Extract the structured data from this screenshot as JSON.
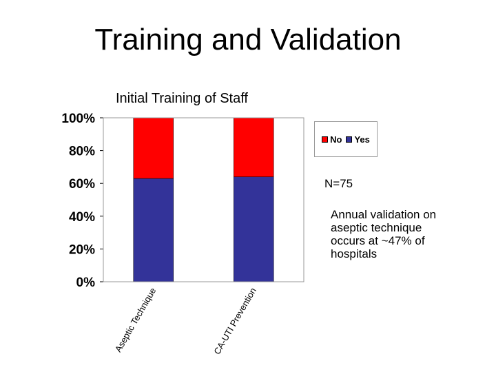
{
  "slide": {
    "title": "Training and Validation",
    "n_note": "N=75",
    "annual_note": "Annual validation on aseptic technique occurs at ~47% of hospitals"
  },
  "colors": {
    "No": "#ff0000",
    "Yes": "#333399",
    "plot_border": "#999999"
  },
  "chart_data": {
    "type": "bar",
    "stacked": true,
    "title": "Initial Training of Staff",
    "categories": [
      "Aseptic Technique",
      "CA-UTI Prevention"
    ],
    "series": [
      {
        "name": "Yes",
        "values": [
          63,
          64
        ]
      },
      {
        "name": "No",
        "values": [
          37,
          36
        ]
      }
    ],
    "ylim": [
      0,
      100
    ],
    "yticks": [
      "0%",
      "20%",
      "40%",
      "60%",
      "80%",
      "100%"
    ],
    "grid": false,
    "legend_position": "right"
  }
}
